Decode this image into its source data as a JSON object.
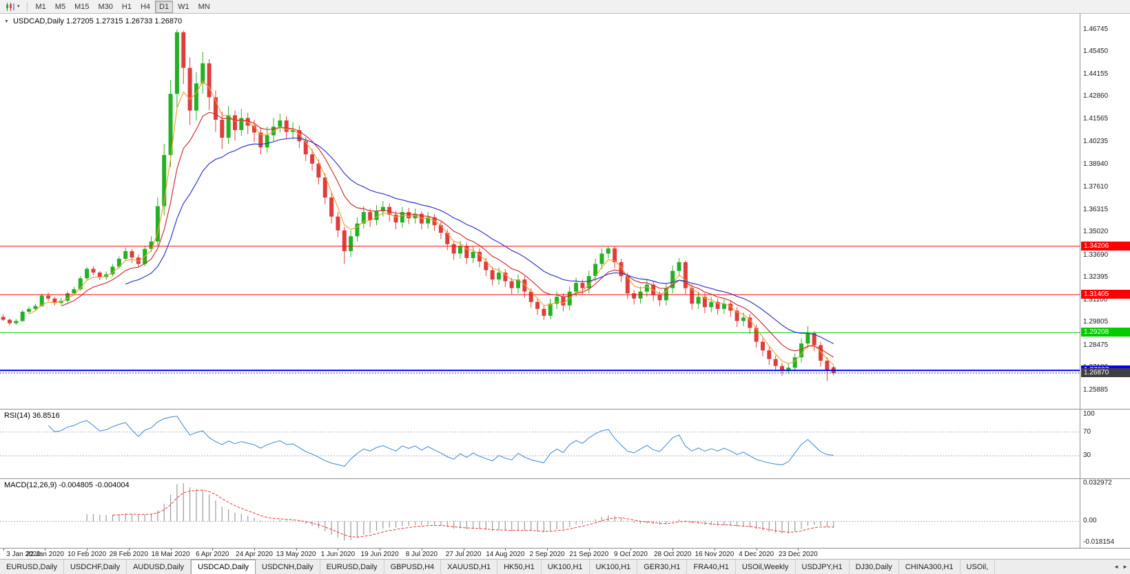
{
  "toolbar": {
    "timeframes": [
      "M1",
      "M5",
      "M15",
      "M30",
      "H1",
      "H4",
      "D1",
      "W1",
      "MN"
    ],
    "active_timeframe": "D1"
  },
  "icons": {
    "toolbar_caret": "▾",
    "title_caret": "▼"
  },
  "chart": {
    "symbol_title": "USDCAD,Daily",
    "ohlc": {
      "open": "1.27205",
      "high": "1.27315",
      "low": "1.26733",
      "close": "1.26870"
    },
    "title_text": "USDCAD,Daily 1.27205 1.27315 1.26733 1.26870"
  },
  "price_axis": {
    "ticks": [
      "1.46745",
      "1.45450",
      "1.44155",
      "1.42860",
      "1.41565",
      "1.40235",
      "1.38940",
      "1.37610",
      "1.36315",
      "1.35020",
      "1.33690",
      "1.32395",
      "1.31100",
      "1.29805",
      "1.28475",
      "1.27180",
      "1.25885"
    ]
  },
  "hlines": [
    {
      "name": "resistance-line-upper",
      "price": 1.34206,
      "label": "1.34206",
      "color": "#ff0000",
      "width": 1,
      "dotted": false
    },
    {
      "name": "resistance-line-lower",
      "price": 1.31405,
      "label": "1.31405",
      "color": "#ff0000",
      "width": 1,
      "dotted": false
    },
    {
      "name": "support-line-green",
      "price": 1.29208,
      "label": "1.29208",
      "color": "#00cc00",
      "width": 1,
      "dotted": false
    },
    {
      "name": "support-line-blue",
      "price": 1.27027,
      "label": "1.27027",
      "color": "#0000ff",
      "width": 2,
      "dotted": false
    },
    {
      "name": "bid-price-line",
      "price": 1.2687,
      "label": "1.26870",
      "color": "#404040",
      "width": 1,
      "dotted": true
    }
  ],
  "indicators": {
    "rsi": {
      "label": "RSI(14) 36.8516",
      "name": "RSI",
      "params": "14",
      "current_value": "36.8516",
      "color": "#4a90d9",
      "levels": [
        70,
        30
      ],
      "axis_ticks": [
        {
          "label": "100",
          "value": 100
        },
        {
          "label": "70",
          "value": 70
        },
        {
          "label": "30",
          "value": 30
        }
      ]
    },
    "macd": {
      "label": "MACD(12,26,9) -0.004805 -0.004004",
      "name": "MACD",
      "params": "12,26,9",
      "current_macd": "-0.004805",
      "current_signal": "-0.004004",
      "hist_color": "#9a9a9a",
      "signal_color": "#ee3333",
      "axis_ticks": [
        {
          "label": "0.032972",
          "value": 0.032972
        },
        {
          "label": "0.00",
          "value": 0
        },
        {
          "label": "-0.018154",
          "value": -0.018154
        }
      ]
    }
  },
  "date_axis": [
    "3 Jan 2020",
    "22 Jan 2020",
    "10 Feb 2020",
    "28 Feb 2020",
    "18 Mar 2020",
    "6 Apr 2020",
    "24 Apr 2020",
    "13 May 2020",
    "1 Jun 2020",
    "19 Jun 2020",
    "8 Jul 2020",
    "27 Jul 2020",
    "14 Aug 2020",
    "2 Sep 2020",
    "21 Sep 2020",
    "9 Oct 2020",
    "28 Oct 2020",
    "16 Nov 2020",
    "4 Dec 2020",
    "23 Dec 2020"
  ],
  "tabs": [
    {
      "label": "EURUSD,Daily"
    },
    {
      "label": "USDCHF,Daily"
    },
    {
      "label": "AUDUSD,Daily"
    },
    {
      "label": "USDCAD,Daily",
      "active": true
    },
    {
      "label": "USDCNH,Daily"
    },
    {
      "label": "EURUSD,Daily"
    },
    {
      "label": "GBPUSD,H4"
    },
    {
      "label": "XAUUSD,H1"
    },
    {
      "label": "HK50,H1"
    },
    {
      "label": "UK100,H1"
    },
    {
      "label": "UK100,H1"
    },
    {
      "label": "GER30,H1"
    },
    {
      "label": "FRA40,H1"
    },
    {
      "label": "USOil,Weekly"
    },
    {
      "label": "USDJPY,H1"
    },
    {
      "label": "DJ30,Daily"
    },
    {
      "label": "CHINA300,H1"
    },
    {
      "label": "USOil,"
    }
  ],
  "tab_scroll": {
    "left": "◄",
    "right": "►"
  },
  "chart_data": {
    "type": "candlestick",
    "symbol": "USDCAD",
    "timeframe": "Daily",
    "title": "USDCAD,Daily",
    "x_range": [
      "3 Jan 2020",
      "Jan 2021"
    ],
    "view": {
      "price_min": 1.25,
      "price_max": 1.4745,
      "candle_area_frac": 0.775
    },
    "up_color": "#23b123",
    "down_color": "#e03c3c",
    "moving_averages": [
      {
        "name": "ma-fast-orange",
        "period": 4,
        "color": "#f0a030"
      },
      {
        "name": "ma-mid-red",
        "period": 9,
        "color": "#d03030"
      },
      {
        "name": "ma-slow-blue",
        "period": 19,
        "color": "#2f36c9"
      }
    ],
    "candles": [
      [
        1.3012,
        1.3028,
        1.2988,
        1.2995
      ],
      [
        1.2995,
        1.3002,
        1.2962,
        1.2975
      ],
      [
        1.2975,
        1.2999,
        1.2965,
        1.2988
      ],
      [
        1.2988,
        1.3051,
        1.2982,
        1.3042
      ],
      [
        1.3042,
        1.3072,
        1.303,
        1.3058
      ],
      [
        1.3058,
        1.3088,
        1.3046,
        1.3075
      ],
      [
        1.3075,
        1.3146,
        1.3068,
        1.3135
      ],
      [
        1.3135,
        1.3152,
        1.3105,
        1.3118
      ],
      [
        1.3118,
        1.3128,
        1.3078,
        1.3092
      ],
      [
        1.3092,
        1.3122,
        1.3082,
        1.3105
      ],
      [
        1.3105,
        1.316,
        1.3096,
        1.3148
      ],
      [
        1.3148,
        1.3186,
        1.3135,
        1.3172
      ],
      [
        1.3172,
        1.3248,
        1.3162,
        1.3235
      ],
      [
        1.3235,
        1.3302,
        1.3226,
        1.329
      ],
      [
        1.329,
        1.3305,
        1.3252,
        1.3268
      ],
      [
        1.3268,
        1.3278,
        1.3225,
        1.3242
      ],
      [
        1.3242,
        1.3275,
        1.3228,
        1.3258
      ],
      [
        1.3258,
        1.3318,
        1.3246,
        1.3302
      ],
      [
        1.3302,
        1.3362,
        1.329,
        1.3348
      ],
      [
        1.3348,
        1.3412,
        1.3335,
        1.3392
      ],
      [
        1.3392,
        1.3405,
        1.3322,
        1.3355
      ],
      [
        1.3355,
        1.3372,
        1.3298,
        1.3318
      ],
      [
        1.3318,
        1.3425,
        1.3305,
        1.3405
      ],
      [
        1.3405,
        1.3478,
        1.3388,
        1.3448
      ],
      [
        1.3448,
        1.3702,
        1.3422,
        1.3652
      ],
      [
        1.3652,
        1.4012,
        1.3598,
        1.3948
      ],
      [
        1.3948,
        1.4382,
        1.3878,
        1.4302
      ],
      [
        1.4302,
        1.4674,
        1.4222,
        1.4658
      ],
      [
        1.4658,
        1.4668,
        1.4358,
        1.4452
      ],
      [
        1.4452,
        1.4512,
        1.4122,
        1.4205
      ],
      [
        1.4205,
        1.4428,
        1.4148,
        1.4362
      ],
      [
        1.4362,
        1.4545,
        1.4302,
        1.4478
      ],
      [
        1.4478,
        1.4502,
        1.4208,
        1.4282
      ],
      [
        1.4282,
        1.4322,
        1.4082,
        1.4152
      ],
      [
        1.4152,
        1.4198,
        1.3982,
        1.4048
      ],
      [
        1.4048,
        1.4232,
        1.4012,
        1.4178
      ],
      [
        1.4178,
        1.4205,
        1.4032,
        1.4092
      ],
      [
        1.4092,
        1.4215,
        1.4058,
        1.4162
      ],
      [
        1.4162,
        1.4192,
        1.4068,
        1.4118
      ],
      [
        1.4118,
        1.4152,
        1.4022,
        1.4078
      ],
      [
        1.4078,
        1.4108,
        1.3952,
        1.3992
      ],
      [
        1.3992,
        1.4112,
        1.3962,
        1.4062
      ],
      [
        1.4062,
        1.4162,
        1.4028,
        1.4112
      ],
      [
        1.4112,
        1.4188,
        1.4078,
        1.4148
      ],
      [
        1.4148,
        1.4172,
        1.4042,
        1.4082
      ],
      [
        1.4082,
        1.4138,
        1.4038,
        1.4092
      ],
      [
        1.4092,
        1.4118,
        1.3988,
        1.4028
      ],
      [
        1.4028,
        1.4052,
        1.3912,
        1.3952
      ],
      [
        1.3952,
        1.3982,
        1.3858,
        1.3898
      ],
      [
        1.3898,
        1.3922,
        1.3778,
        1.3818
      ],
      [
        1.3818,
        1.3842,
        1.3665,
        1.3702
      ],
      [
        1.3702,
        1.3728,
        1.3552,
        1.3592
      ],
      [
        1.3592,
        1.3618,
        1.3472,
        1.3512
      ],
      [
        1.3512,
        1.3532,
        1.3318,
        1.3392
      ],
      [
        1.3392,
        1.3512,
        1.3358,
        1.3478
      ],
      [
        1.3478,
        1.3588,
        1.3448,
        1.3552
      ],
      [
        1.3552,
        1.3652,
        1.3522,
        1.3618
      ],
      [
        1.3618,
        1.3638,
        1.3532,
        1.3572
      ],
      [
        1.3572,
        1.3658,
        1.3542,
        1.3622
      ],
      [
        1.3622,
        1.3682,
        1.3592,
        1.3648
      ],
      [
        1.3648,
        1.3668,
        1.3562,
        1.3602
      ],
      [
        1.3602,
        1.3625,
        1.3518,
        1.3558
      ],
      [
        1.3558,
        1.3648,
        1.3528,
        1.3618
      ],
      [
        1.3618,
        1.3642,
        1.3548,
        1.3582
      ],
      [
        1.3582,
        1.3638,
        1.3552,
        1.3608
      ],
      [
        1.3608,
        1.3622,
        1.3518,
        1.3552
      ],
      [
        1.3552,
        1.3618,
        1.3522,
        1.3588
      ],
      [
        1.3588,
        1.3608,
        1.3508,
        1.3542
      ],
      [
        1.3542,
        1.3562,
        1.3462,
        1.3498
      ],
      [
        1.3498,
        1.3518,
        1.3398,
        1.3432
      ],
      [
        1.3432,
        1.3452,
        1.3342,
        1.3378
      ],
      [
        1.3378,
        1.3452,
        1.3348,
        1.3422
      ],
      [
        1.3422,
        1.3442,
        1.3318,
        1.3352
      ],
      [
        1.3352,
        1.3418,
        1.3322,
        1.3388
      ],
      [
        1.3388,
        1.3408,
        1.3298,
        1.3332
      ],
      [
        1.3332,
        1.3352,
        1.3248,
        1.3282
      ],
      [
        1.3282,
        1.3302,
        1.3194,
        1.3228
      ],
      [
        1.3228,
        1.3298,
        1.3198,
        1.3268
      ],
      [
        1.3268,
        1.3288,
        1.3184,
        1.3218
      ],
      [
        1.3218,
        1.3238,
        1.3144,
        1.3178
      ],
      [
        1.3178,
        1.3258,
        1.3148,
        1.3228
      ],
      [
        1.3228,
        1.3248,
        1.3124,
        1.3158
      ],
      [
        1.3158,
        1.3178,
        1.3064,
        1.3098
      ],
      [
        1.3098,
        1.3118,
        1.3024,
        1.3058
      ],
      [
        1.3058,
        1.3078,
        1.2994,
        1.3018
      ],
      [
        1.3018,
        1.3118,
        1.2998,
        1.3088
      ],
      [
        1.3088,
        1.3158,
        1.3058,
        1.3128
      ],
      [
        1.3128,
        1.3148,
        1.3044,
        1.3078
      ],
      [
        1.3078,
        1.3188,
        1.3048,
        1.3158
      ],
      [
        1.3158,
        1.3238,
        1.3128,
        1.3208
      ],
      [
        1.3208,
        1.3228,
        1.3144,
        1.3178
      ],
      [
        1.3178,
        1.3278,
        1.3148,
        1.3248
      ],
      [
        1.3248,
        1.3348,
        1.3218,
        1.3318
      ],
      [
        1.3318,
        1.3408,
        1.3288,
        1.3378
      ],
      [
        1.3378,
        1.3421,
        1.3348,
        1.3408
      ],
      [
        1.3408,
        1.3418,
        1.3294,
        1.3328
      ],
      [
        1.3328,
        1.3348,
        1.3214,
        1.3248
      ],
      [
        1.3248,
        1.3268,
        1.3114,
        1.3148
      ],
      [
        1.3148,
        1.3168,
        1.3084,
        1.3118
      ],
      [
        1.3118,
        1.3188,
        1.3088,
        1.3158
      ],
      [
        1.3158,
        1.3228,
        1.3128,
        1.3198
      ],
      [
        1.3198,
        1.3218,
        1.3104,
        1.3138
      ],
      [
        1.3138,
        1.3158,
        1.3074,
        1.3108
      ],
      [
        1.3108,
        1.3208,
        1.3078,
        1.3178
      ],
      [
        1.3178,
        1.3308,
        1.3148,
        1.3278
      ],
      [
        1.3278,
        1.3352,
        1.3248,
        1.3328
      ],
      [
        1.3328,
        1.3338,
        1.3144,
        1.3178
      ],
      [
        1.3178,
        1.3198,
        1.3054,
        1.3088
      ],
      [
        1.3088,
        1.3158,
        1.3058,
        1.3128
      ],
      [
        1.3128,
        1.3148,
        1.3034,
        1.3068
      ],
      [
        1.3068,
        1.3128,
        1.3038,
        1.3098
      ],
      [
        1.3098,
        1.3118,
        1.3024,
        1.3058
      ],
      [
        1.3058,
        1.3118,
        1.3028,
        1.3088
      ],
      [
        1.3088,
        1.3108,
        1.3014,
        1.3048
      ],
      [
        1.3048,
        1.3068,
        1.2954,
        1.2988
      ],
      [
        1.2988,
        1.3038,
        1.2958,
        1.3008
      ],
      [
        1.3008,
        1.3028,
        1.2914,
        1.2948
      ],
      [
        1.2948,
        1.2968,
        1.2834,
        1.2868
      ],
      [
        1.2868,
        1.2888,
        1.2784,
        1.2818
      ],
      [
        1.2818,
        1.2838,
        1.2734,
        1.2768
      ],
      [
        1.2768,
        1.2788,
        1.2698,
        1.2728
      ],
      [
        1.2728,
        1.2748,
        1.2672,
        1.2698
      ],
      [
        1.2698,
        1.2742,
        1.2682,
        1.2718
      ],
      [
        1.2718,
        1.2802,
        1.2698,
        1.2778
      ],
      [
        1.2778,
        1.2888,
        1.2748,
        1.2858
      ],
      [
        1.2858,
        1.2958,
        1.2828,
        1.2918
      ],
      [
        1.2918,
        1.2928,
        1.2814,
        1.2848
      ],
      [
        1.2848,
        1.2868,
        1.2724,
        1.2758
      ],
      [
        1.2758,
        1.2778,
        1.2642,
        1.2702
      ],
      [
        1.27205,
        1.27315,
        1.26733,
        1.2687
      ]
    ]
  }
}
